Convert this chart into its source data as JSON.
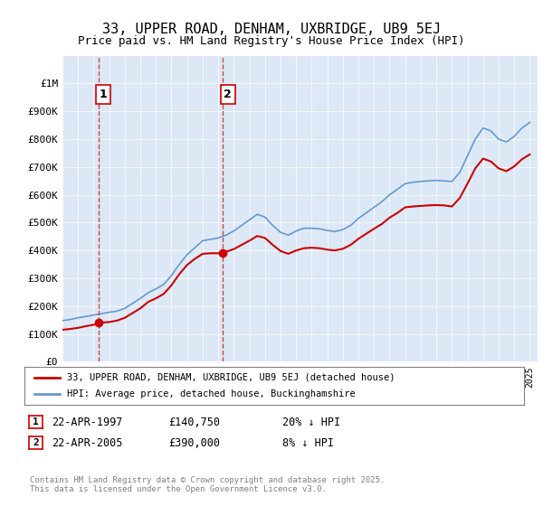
{
  "title": "33, UPPER ROAD, DENHAM, UXBRIDGE, UB9 5EJ",
  "subtitle": "Price paid vs. HM Land Registry's House Price Index (HPI)",
  "legend_label_red": "33, UPPER ROAD, DENHAM, UXBRIDGE, UB9 5EJ (detached house)",
  "legend_label_blue": "HPI: Average price, detached house, Buckinghamshire",
  "sale1_date": "22-APR-1997",
  "sale1_price": 140750,
  "sale1_note": "20% ↓ HPI",
  "sale2_date": "22-APR-2005",
  "sale2_price": 390000,
  "sale2_note": "8% ↓ HPI",
  "footnote": "Contains HM Land Registry data © Crown copyright and database right 2025.\nThis data is licensed under the Open Government Licence v3.0.",
  "ylim": [
    0,
    1100000
  ],
  "yticks": [
    0,
    100000,
    200000,
    300000,
    400000,
    500000,
    600000,
    700000,
    800000,
    900000,
    1000000
  ],
  "ytick_labels": [
    "£0",
    "£100K",
    "£200K",
    "£300K",
    "£400K",
    "£500K",
    "£600K",
    "£700K",
    "£800K",
    "£900K",
    "£1M"
  ],
  "sale1_year": 1997.31,
  "sale2_year": 2005.31,
  "background_color": "#e8f0f8",
  "plot_bg": "#dce8f5",
  "red_color": "#cc0000",
  "blue_color": "#6699cc"
}
